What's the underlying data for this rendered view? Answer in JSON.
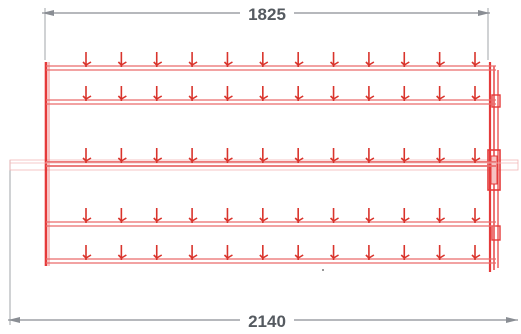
{
  "drawing": {
    "top_dimension": "1825",
    "bottom_dimension": "2140"
  },
  "rack": {
    "rows": 5,
    "hooks_per_row": 12
  },
  "colors": {
    "frame": "#e53a3a",
    "rail": "#e96a6a",
    "hook": "#d9342c",
    "dimension_line": "#8a8e94",
    "background": "#ffffff"
  }
}
